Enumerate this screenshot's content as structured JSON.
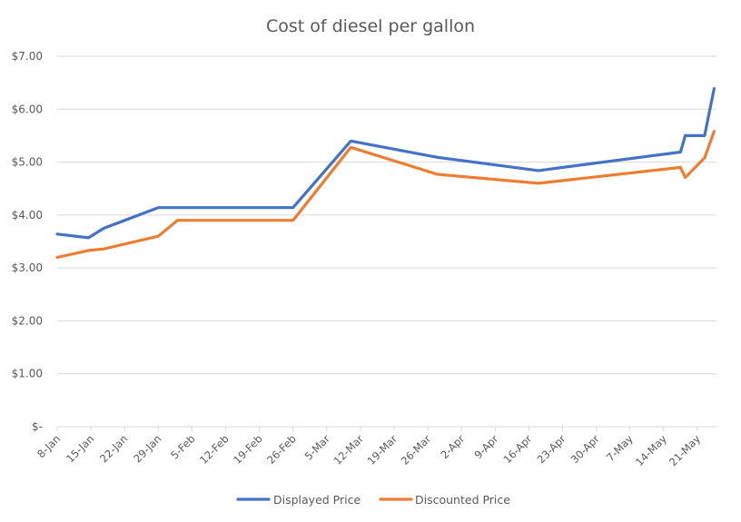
{
  "chart_data": {
    "type": "line",
    "title": "Cost of diesel per gallon",
    "xlabel": "",
    "ylabel": "",
    "ylim": [
      0,
      7
    ],
    "yticks": [
      0,
      1,
      2,
      3,
      4,
      5,
      6,
      7
    ],
    "ytick_labels": [
      "$-",
      "$1.00",
      "$2.00",
      "$3.00",
      "$4.00",
      "$5.00",
      "$6.00",
      "$7.00"
    ],
    "x_start_day": 0,
    "x_end_day": 137,
    "x_tick_days": [
      0,
      7,
      14,
      21,
      28,
      35,
      42,
      49,
      56,
      63,
      70,
      77,
      84,
      91,
      98,
      105,
      112,
      119,
      126,
      133
    ],
    "x_tick_labels": [
      "8-Jan",
      "15-Jan",
      "22-Jan",
      "29-Jan",
      "5-Feb",
      "12-Feb",
      "19-Feb",
      "26-Feb",
      "5-Mar",
      "12-Mar",
      "19-Mar",
      "26-Mar",
      "2-Apr",
      "9-Apr",
      "16-Apr",
      "23-Apr",
      "30-Apr",
      "7-May",
      "14-May",
      "21-May"
    ],
    "grid": true,
    "legend_position": "bottom",
    "series": [
      {
        "name": "Displayed Price",
        "color": "#4472c4",
        "points": [
          {
            "date": "8-Jan",
            "day": 0,
            "value": 3.64
          },
          {
            "date": "14-Jan",
            "day": 6.5,
            "value": 3.57
          },
          {
            "date": "17-Jan",
            "day": 9.7,
            "value": 3.75
          },
          {
            "date": "29-Jan",
            "day": 21,
            "value": 4.14
          },
          {
            "date": "26-Feb",
            "day": 49,
            "value": 4.14
          },
          {
            "date": "10-Mar",
            "day": 61,
            "value": 5.4
          },
          {
            "date": "28-Mar",
            "day": 79,
            "value": 5.09
          },
          {
            "date": "18-Apr",
            "day": 100,
            "value": 4.84
          },
          {
            "date": "17-May",
            "day": 129.5,
            "value": 5.19
          },
          {
            "date": "18-May",
            "day": 130.5,
            "value": 5.5
          },
          {
            "date": "22-May",
            "day": 134.5,
            "value": 5.5
          },
          {
            "date": "24-May",
            "day": 136.5,
            "value": 6.39
          }
        ]
      },
      {
        "name": "Discounted Price",
        "color": "#ed7d31",
        "points": [
          {
            "date": "8-Jan",
            "day": 0,
            "value": 3.2
          },
          {
            "date": "14-Jan",
            "day": 6.5,
            "value": 3.33
          },
          {
            "date": "17-Jan",
            "day": 9.7,
            "value": 3.36
          },
          {
            "date": "29-Jan",
            "day": 21,
            "value": 3.6
          },
          {
            "date": "2-Feb",
            "day": 25,
            "value": 3.9
          },
          {
            "date": "26-Feb",
            "day": 49,
            "value": 3.9
          },
          {
            "date": "10-Mar",
            "day": 61,
            "value": 5.28
          },
          {
            "date": "28-Mar",
            "day": 79,
            "value": 4.77
          },
          {
            "date": "18-Apr",
            "day": 100,
            "value": 4.6
          },
          {
            "date": "17-May",
            "day": 129.5,
            "value": 4.9
          },
          {
            "date": "18-May",
            "day": 130.5,
            "value": 4.71
          },
          {
            "date": "22-May",
            "day": 134.5,
            "value": 5.08
          },
          {
            "date": "24-May",
            "day": 136.5,
            "value": 5.58
          }
        ]
      }
    ]
  }
}
